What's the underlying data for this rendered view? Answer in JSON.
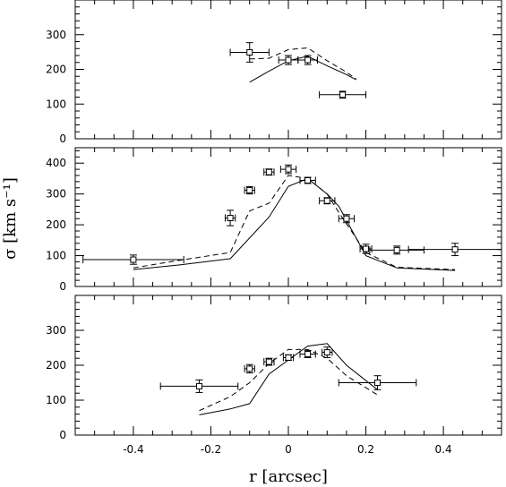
{
  "chart_data": [
    {
      "type": "line",
      "ylim": [
        0,
        400
      ],
      "yticks": [
        "0",
        "100",
        "200",
        "300"
      ],
      "show_xtick_labels": false,
      "points": {
        "x": [
          -0.1,
          0.0,
          0.05,
          0.14
        ],
        "y": [
          249,
          227,
          227,
          127
        ],
        "xerr": [
          0.05,
          0.025,
          0.025,
          0.06
        ],
        "yerr": [
          28,
          13,
          13,
          10
        ]
      },
      "series": [
        {
          "name": "",
          "style": "solid",
          "x": [
            -0.1,
            -0.05,
            0.0,
            0.05,
            0.1,
            0.15,
            0.175
          ],
          "y": [
            163,
            195,
            225,
            238,
            210,
            185,
            170
          ]
        },
        {
          "name": "",
          "style": "dashed",
          "x": [
            -0.1,
            -0.05,
            0.0,
            0.05,
            0.1,
            0.15,
            0.175
          ],
          "y": [
            230,
            232,
            257,
            262,
            225,
            192,
            172
          ]
        }
      ]
    },
    {
      "type": "line",
      "ylim": [
        0,
        450
      ],
      "yticks": [
        "0",
        "100",
        "200",
        "300",
        "400"
      ],
      "show_xtick_labels": false,
      "ylabel": "σ [km s⁻¹]",
      "points": {
        "x": [
          -0.4,
          -0.15,
          -0.1,
          -0.05,
          0.0,
          0.05,
          0.1,
          0.15,
          0.2,
          0.28,
          0.43
        ],
        "y": [
          87,
          222,
          312,
          371,
          380,
          344,
          278,
          220,
          122,
          118,
          120
        ],
        "xerr": [
          0.13,
          0.013,
          0.013,
          0.013,
          0.02,
          0.02,
          0.02,
          0.02,
          0.015,
          0.07,
          0.12
        ],
        "yerr": [
          15,
          25,
          12,
          10,
          14,
          10,
          10,
          13,
          15,
          13,
          20
        ]
      },
      "series": [
        {
          "name": "",
          "style": "solid",
          "x": [
            -0.4,
            -0.28,
            -0.15,
            -0.05,
            0.0,
            0.05,
            0.1,
            0.13,
            0.2,
            0.28,
            0.43
          ],
          "y": [
            55,
            70,
            90,
            225,
            325,
            350,
            300,
            260,
            100,
            60,
            52
          ]
        },
        {
          "name": "",
          "style": "dashed",
          "x": [
            -0.4,
            -0.28,
            -0.15,
            -0.1,
            -0.05,
            0.0,
            0.05,
            0.1,
            0.13,
            0.2,
            0.28,
            0.43
          ],
          "y": [
            60,
            85,
            110,
            245,
            270,
            360,
            350,
            300,
            240,
            110,
            62,
            55
          ]
        }
      ]
    },
    {
      "type": "line",
      "ylim": [
        0,
        400
      ],
      "yticks": [
        "0",
        "100",
        "200",
        "300"
      ],
      "show_xtick_labels": true,
      "xlim": [
        -0.55,
        0.55
      ],
      "xticks": [
        "-0.4",
        "-0.2",
        "0",
        "0.2",
        "0.4"
      ],
      "xtick_values": [
        -0.4,
        -0.2,
        0.0,
        0.2,
        0.4
      ],
      "xlabel": "r [arcsec]",
      "points": {
        "x": [
          -0.23,
          -0.1,
          -0.05,
          0.0,
          0.05,
          0.1,
          0.23
        ],
        "y": [
          140,
          190,
          210,
          222,
          232,
          237,
          150
        ],
        "xerr": [
          0.1,
          0.013,
          0.013,
          0.013,
          0.02,
          0.013,
          0.1
        ],
        "yerr": [
          18,
          12,
          10,
          8,
          10,
          15,
          20
        ]
      },
      "series": [
        {
          "name": "",
          "style": "solid",
          "x": [
            -0.23,
            -0.15,
            -0.1,
            -0.05,
            0.0,
            0.05,
            0.1,
            0.15,
            0.23
          ],
          "y": [
            58,
            75,
            90,
            175,
            215,
            255,
            262,
            200,
            130
          ]
        },
        {
          "name": "",
          "style": "dashed",
          "x": [
            -0.23,
            -0.15,
            -0.1,
            -0.05,
            0.0,
            0.05,
            0.1,
            0.15,
            0.23
          ],
          "y": [
            70,
            110,
            150,
            205,
            245,
            245,
            220,
            170,
            115
          ]
        }
      ]
    }
  ]
}
